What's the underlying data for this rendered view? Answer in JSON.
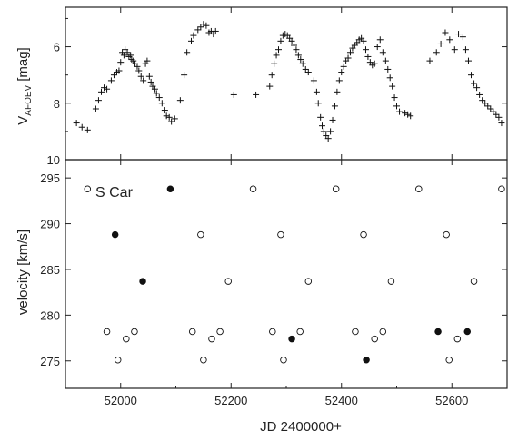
{
  "chart_data": [
    {
      "type": "scatter",
      "panel": "top",
      "xlabel": "JD 2400000+",
      "ylabel_main": "V",
      "ylabel_sub": "AFOEV",
      "ylabel_unit": "[mag]",
      "xlim": [
        51900,
        52700
      ],
      "ylim": [
        10,
        4.6
      ],
      "y_inverted": true,
      "yticks": [
        6,
        8,
        10
      ],
      "grid": false,
      "marker": "plus",
      "series": [
        {
          "points": [
            [
              51920,
              8.7
            ],
            [
              51930,
              8.85
            ],
            [
              51940,
              8.95
            ],
            [
              51955,
              8.2
            ],
            [
              51960,
              7.9
            ],
            [
              51965,
              7.6
            ],
            [
              51970,
              7.45
            ],
            [
              51975,
              7.5
            ],
            [
              51983,
              7.2
            ],
            [
              51988,
              7.0
            ],
            [
              51993,
              6.9
            ],
            [
              51997,
              6.85
            ],
            [
              52000,
              6.55
            ],
            [
              52003,
              6.2
            ],
            [
              52006,
              6.3
            ],
            [
              52008,
              6.1
            ],
            [
              52012,
              6.2
            ],
            [
              52015,
              6.35
            ],
            [
              52018,
              6.3
            ],
            [
              52020,
              6.45
            ],
            [
              52023,
              6.5
            ],
            [
              52026,
              6.6
            ],
            [
              52030,
              6.7
            ],
            [
              52033,
              6.85
            ],
            [
              52037,
              7.05
            ],
            [
              52041,
              7.2
            ],
            [
              52045,
              6.6
            ],
            [
              52048,
              6.5
            ],
            [
              52052,
              7.05
            ],
            [
              52055,
              7.25
            ],
            [
              52058,
              7.4
            ],
            [
              52062,
              7.5
            ],
            [
              52065,
              7.65
            ],
            [
              52070,
              7.8
            ],
            [
              52075,
              8.0
            ],
            [
              52080,
              8.25
            ],
            [
              52083,
              8.45
            ],
            [
              52088,
              8.5
            ],
            [
              52092,
              8.65
            ],
            [
              52098,
              8.55
            ],
            [
              52108,
              7.9
            ],
            [
              52115,
              7.0
            ],
            [
              52120,
              6.2
            ],
            [
              52128,
              5.8
            ],
            [
              52132,
              5.6
            ],
            [
              52140,
              5.4
            ],
            [
              52145,
              5.3
            ],
            [
              52150,
              5.2
            ],
            [
              52155,
              5.25
            ],
            [
              52160,
              5.5
            ],
            [
              52164,
              5.45
            ],
            [
              52168,
              5.55
            ],
            [
              52172,
              5.45
            ],
            [
              52205,
              7.7
            ],
            [
              52245,
              7.7
            ],
            [
              52270,
              7.4
            ],
            [
              52274,
              7.0
            ],
            [
              52278,
              6.6
            ],
            [
              52282,
              6.3
            ],
            [
              52286,
              6.1
            ],
            [
              52290,
              5.8
            ],
            [
              52294,
              5.6
            ],
            [
              52298,
              5.55
            ],
            [
              52302,
              5.6
            ],
            [
              52306,
              5.7
            ],
            [
              52310,
              5.8
            ],
            [
              52314,
              5.95
            ],
            [
              52318,
              6.1
            ],
            [
              52322,
              6.3
            ],
            [
              52326,
              6.45
            ],
            [
              52330,
              6.6
            ],
            [
              52335,
              6.8
            ],
            [
              52340,
              6.9
            ],
            [
              52350,
              7.2
            ],
            [
              52355,
              7.6
            ],
            [
              52358,
              8.0
            ],
            [
              52362,
              8.5
            ],
            [
              52365,
              8.8
            ],
            [
              52368,
              9.0
            ],
            [
              52372,
              9.15
            ],
            [
              52376,
              9.25
            ],
            [
              52380,
              9.0
            ],
            [
              52384,
              8.6
            ],
            [
              52388,
              8.1
            ],
            [
              52392,
              7.6
            ],
            [
              52396,
              7.2
            ],
            [
              52400,
              6.9
            ],
            [
              52404,
              6.7
            ],
            [
              52408,
              6.5
            ],
            [
              52412,
              6.4
            ],
            [
              52416,
              6.2
            ],
            [
              52420,
              6.05
            ],
            [
              52424,
              5.95
            ],
            [
              52428,
              5.85
            ],
            [
              52432,
              5.75
            ],
            [
              52436,
              5.7
            ],
            [
              52440,
              5.8
            ],
            [
              52444,
              6.1
            ],
            [
              52448,
              6.35
            ],
            [
              52452,
              6.55
            ],
            [
              52456,
              6.65
            ],
            [
              52460,
              6.6
            ],
            [
              52465,
              6.0
            ],
            [
              52470,
              5.75
            ],
            [
              52475,
              6.2
            ],
            [
              52480,
              6.5
            ],
            [
              52484,
              6.8
            ],
            [
              52488,
              7.1
            ],
            [
              52492,
              7.4
            ],
            [
              52496,
              7.8
            ],
            [
              52500,
              8.1
            ],
            [
              52505,
              8.3
            ],
            [
              52515,
              8.35
            ],
            [
              52520,
              8.4
            ],
            [
              52525,
              8.45
            ],
            [
              52560,
              6.5
            ],
            [
              52572,
              6.2
            ],
            [
              52580,
              5.9
            ],
            [
              52588,
              5.5
            ],
            [
              52596,
              5.75
            ],
            [
              52605,
              6.1
            ],
            [
              52612,
              5.55
            ],
            [
              52620,
              5.65
            ],
            [
              52625,
              6.1
            ],
            [
              52630,
              6.5
            ],
            [
              52635,
              7.0
            ],
            [
              52640,
              7.3
            ],
            [
              52645,
              7.45
            ],
            [
              52650,
              7.7
            ],
            [
              52655,
              7.9
            ],
            [
              52660,
              8.0
            ],
            [
              52665,
              8.1
            ],
            [
              52670,
              8.2
            ],
            [
              52675,
              8.3
            ],
            [
              52680,
              8.4
            ],
            [
              52685,
              8.5
            ],
            [
              52690,
              8.7
            ]
          ]
        }
      ]
    },
    {
      "type": "scatter",
      "panel": "bottom",
      "annotation": "S Car",
      "xlabel": "JD 2400000+",
      "ylabel": "velocity [km/s]",
      "xlim": [
        51900,
        52700
      ],
      "ylim": [
        272,
        297
      ],
      "xticks": [
        52000,
        52200,
        52400,
        52600
      ],
      "yticks": [
        275,
        280,
        285,
        290,
        295
      ],
      "grid": false,
      "series": [
        {
          "marker": "filled-circle",
          "points": [
            [
              51990,
              288.8
            ],
            [
              52040,
              283.7
            ],
            [
              52090,
              293.8
            ],
            [
              52310,
              277.4
            ],
            [
              52445,
              275.1
            ],
            [
              52575,
              278.2
            ],
            [
              52628,
              278.2
            ]
          ]
        },
        {
          "marker": "open-circle",
          "points": [
            [
              51940,
              293.8
            ],
            [
              51975,
              278.2
            ],
            [
              51995,
              275.1
            ],
            [
              52010,
              277.4
            ],
            [
              52025,
              278.2
            ],
            [
              52130,
              278.2
            ],
            [
              52145,
              288.8
            ],
            [
              52150,
              275.1
            ],
            [
              52165,
              277.4
            ],
            [
              52180,
              278.2
            ],
            [
              52195,
              283.7
            ],
            [
              52240,
              293.8
            ],
            [
              52275,
              278.2
            ],
            [
              52290,
              288.8
            ],
            [
              52295,
              275.1
            ],
            [
              52325,
              278.2
            ],
            [
              52340,
              283.7
            ],
            [
              52390,
              293.8
            ],
            [
              52425,
              278.2
            ],
            [
              52440,
              288.8
            ],
            [
              52460,
              277.4
            ],
            [
              52475,
              278.2
            ],
            [
              52490,
              283.7
            ],
            [
              52540,
              293.8
            ],
            [
              52590,
              288.8
            ],
            [
              52595,
              275.1
            ],
            [
              52610,
              277.4
            ],
            [
              52640,
              283.7
            ],
            [
              52690,
              293.8
            ]
          ]
        }
      ]
    }
  ]
}
